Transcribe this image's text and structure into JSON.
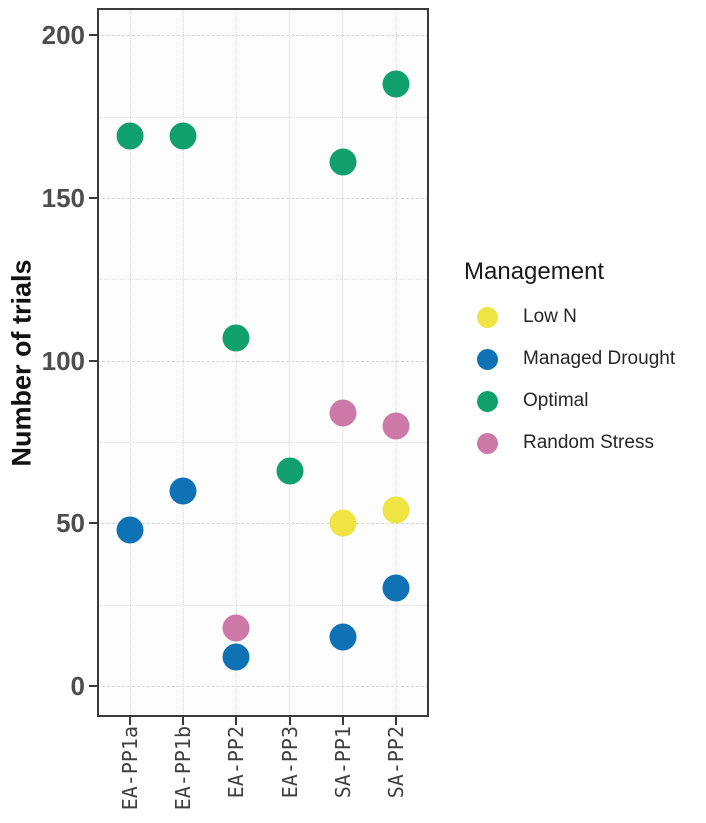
{
  "chart_data": {
    "type": "scatter",
    "title": "",
    "xlabel": "",
    "ylabel": "Number of trials",
    "categories": [
      "EA-PP1a",
      "EA-PP1b",
      "EA-PP2",
      "EA-PP3",
      "SA-PP1",
      "SA-PP2"
    ],
    "ylim": [
      -9.5,
      208.4
    ],
    "y_ticks": [
      0,
      50,
      100,
      150,
      200
    ],
    "y_tick_labels": [
      "0",
      "50",
      "100",
      "150",
      "200"
    ],
    "y_minor_ticks": [
      25,
      75,
      125,
      175
    ],
    "grid": "dotted horizontal lines every 25 units, dotted vertical line at each category",
    "legend": {
      "title": "Management",
      "position": "right",
      "entries": [
        {
          "label": "Low N",
          "color": "#F0E442"
        },
        {
          "label": "Managed Drought",
          "color": "#0F72B4"
        },
        {
          "label": "Optimal",
          "color": "#10A06E"
        },
        {
          "label": "Random Stress",
          "color": "#CC79A7"
        }
      ]
    },
    "series": [
      {
        "name": "Low N",
        "color": "#F0E442",
        "points": [
          {
            "category": "SA-PP1",
            "value": 50
          },
          {
            "category": "SA-PP2",
            "value": 54
          }
        ]
      },
      {
        "name": "Managed Drought",
        "color": "#0F72B4",
        "points": [
          {
            "category": "EA-PP1a",
            "value": 48
          },
          {
            "category": "EA-PP1b",
            "value": 60
          },
          {
            "category": "EA-PP2",
            "value": 9
          },
          {
            "category": "SA-PP1",
            "value": 15
          },
          {
            "category": "SA-PP2",
            "value": 30
          }
        ]
      },
      {
        "name": "Optimal",
        "color": "#10A06E",
        "points": [
          {
            "category": "EA-PP1a",
            "value": 169
          },
          {
            "category": "EA-PP1b",
            "value": 169
          },
          {
            "category": "EA-PP2",
            "value": 107
          },
          {
            "category": "EA-PP3",
            "value": 66
          },
          {
            "category": "SA-PP1",
            "value": 161
          },
          {
            "category": "SA-PP2",
            "value": 185
          }
        ]
      },
      {
        "name": "Random Stress",
        "color": "#CC79A7",
        "points": [
          {
            "category": "EA-PP2",
            "value": 18
          },
          {
            "category": "SA-PP1",
            "value": 84
          },
          {
            "category": "SA-PP2",
            "value": 80
          }
        ]
      }
    ]
  }
}
